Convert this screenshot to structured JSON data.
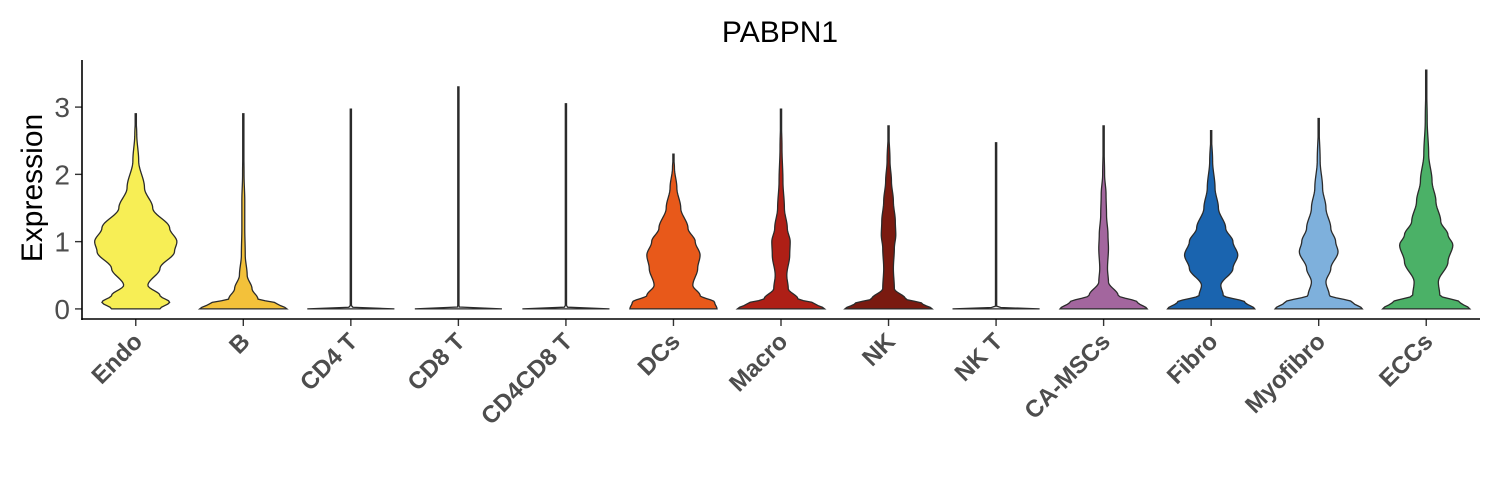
{
  "chart_data": {
    "type": "violin",
    "title": "PABPN1",
    "xlabel": "",
    "ylabel": "Expression",
    "ylim": [
      -0.15,
      3.7
    ],
    "yticks": [
      0,
      1,
      2,
      3
    ],
    "grid": false,
    "legend": "none",
    "categories": [
      "Endo",
      "B",
      "CD4 T",
      "CD8 T",
      "CD4CD8 T",
      "DCs",
      "Macro",
      "NK",
      "NK T",
      "CA-MSCs",
      "Fibro",
      "Myofibro",
      "ECCs"
    ],
    "series": [
      {
        "category": "Endo",
        "color": "#F7EE55",
        "max": 2.9,
        "density": [
          [
            0,
            0.5
          ],
          [
            0.1,
            0.7
          ],
          [
            0.2,
            0.5
          ],
          [
            0.35,
            0.25
          ],
          [
            0.6,
            0.5
          ],
          [
            0.85,
            0.8
          ],
          [
            1.0,
            0.85
          ],
          [
            1.2,
            0.7
          ],
          [
            1.5,
            0.35
          ],
          [
            1.8,
            0.18
          ],
          [
            2.2,
            0.06
          ],
          [
            2.6,
            0.02
          ],
          [
            2.9,
            0
          ]
        ]
      },
      {
        "category": "B",
        "color": "#F3C13A",
        "max": 2.9,
        "density": [
          [
            0,
            0.9
          ],
          [
            0.08,
            0.7
          ],
          [
            0.15,
            0.3
          ],
          [
            0.3,
            0.18
          ],
          [
            0.5,
            0.08
          ],
          [
            0.8,
            0.04
          ],
          [
            1.2,
            0.03
          ],
          [
            1.6,
            0.03
          ],
          [
            2.0,
            0.015
          ],
          [
            2.5,
            0.008
          ],
          [
            2.9,
            0
          ]
        ]
      },
      {
        "category": "CD4 T",
        "color": "#E8E8E8",
        "max": 2.97,
        "density": [
          [
            0,
            0.9
          ],
          [
            0.01,
            0.2
          ],
          [
            0.03,
            0.01
          ],
          [
            0.5,
            0.005
          ],
          [
            2.97,
            0
          ]
        ]
      },
      {
        "category": "CD8 T",
        "color": "#E8E8E8",
        "max": 3.3,
        "density": [
          [
            0,
            0.9
          ],
          [
            0.01,
            0.2
          ],
          [
            0.03,
            0.01
          ],
          [
            0.5,
            0.005
          ],
          [
            3.3,
            0
          ]
        ]
      },
      {
        "category": "CD4CD8 T",
        "color": "#E8E8E8",
        "max": 3.05,
        "density": [
          [
            0,
            0.9
          ],
          [
            0.01,
            0.2
          ],
          [
            0.03,
            0.01
          ],
          [
            0.5,
            0.005
          ],
          [
            3.05,
            0
          ]
        ]
      },
      {
        "category": "DCs",
        "color": "#E8591A",
        "max": 2.3,
        "density": [
          [
            0,
            0.9
          ],
          [
            0.1,
            0.85
          ],
          [
            0.2,
            0.55
          ],
          [
            0.35,
            0.4
          ],
          [
            0.6,
            0.5
          ],
          [
            0.8,
            0.55
          ],
          [
            1.0,
            0.45
          ],
          [
            1.2,
            0.3
          ],
          [
            1.5,
            0.15
          ],
          [
            1.8,
            0.07
          ],
          [
            2.1,
            0.02
          ],
          [
            2.3,
            0
          ]
        ]
      },
      {
        "category": "Macro",
        "color": "#AE1F16",
        "max": 2.97,
        "density": [
          [
            0,
            0.9
          ],
          [
            0.08,
            0.7
          ],
          [
            0.15,
            0.35
          ],
          [
            0.3,
            0.15
          ],
          [
            0.5,
            0.12
          ],
          [
            0.8,
            0.18
          ],
          [
            1.0,
            0.19
          ],
          [
            1.2,
            0.13
          ],
          [
            1.5,
            0.07
          ],
          [
            1.9,
            0.04
          ],
          [
            2.4,
            0.02
          ],
          [
            2.97,
            0
          ]
        ]
      },
      {
        "category": "NK",
        "color": "#7A1A10",
        "max": 2.72,
        "density": [
          [
            0,
            0.9
          ],
          [
            0.08,
            0.7
          ],
          [
            0.15,
            0.35
          ],
          [
            0.3,
            0.12
          ],
          [
            0.6,
            0.1
          ],
          [
            0.9,
            0.12
          ],
          [
            1.1,
            0.15
          ],
          [
            1.3,
            0.14
          ],
          [
            1.6,
            0.1
          ],
          [
            1.9,
            0.06
          ],
          [
            2.2,
            0.03
          ],
          [
            2.72,
            0
          ]
        ]
      },
      {
        "category": "NK T",
        "color": "#E8E8E8",
        "max": 2.47,
        "density": [
          [
            0,
            0.9
          ],
          [
            0.01,
            0.2
          ],
          [
            0.03,
            0.01
          ],
          [
            0.5,
            0.005
          ],
          [
            2.47,
            0
          ]
        ]
      },
      {
        "category": "CA-MSCs",
        "color": "#A3669E",
        "max": 2.72,
        "density": [
          [
            0,
            0.9
          ],
          [
            0.1,
            0.7
          ],
          [
            0.2,
            0.3
          ],
          [
            0.4,
            0.1
          ],
          [
            0.6,
            0.08
          ],
          [
            0.9,
            0.1
          ],
          [
            1.1,
            0.09
          ],
          [
            1.4,
            0.06
          ],
          [
            1.7,
            0.05
          ],
          [
            2.0,
            0.02
          ],
          [
            2.4,
            0.01
          ],
          [
            2.72,
            0
          ]
        ]
      },
      {
        "category": "Fibro",
        "color": "#1A64AF",
        "max": 2.65,
        "density": [
          [
            0,
            0.9
          ],
          [
            0.1,
            0.7
          ],
          [
            0.2,
            0.25
          ],
          [
            0.35,
            0.2
          ],
          [
            0.6,
            0.45
          ],
          [
            0.8,
            0.55
          ],
          [
            1.0,
            0.45
          ],
          [
            1.2,
            0.3
          ],
          [
            1.5,
            0.15
          ],
          [
            1.8,
            0.08
          ],
          [
            2.2,
            0.03
          ],
          [
            2.65,
            0
          ]
        ]
      },
      {
        "category": "Myofibro",
        "color": "#7EB0DC",
        "max": 2.83,
        "density": [
          [
            0,
            0.9
          ],
          [
            0.1,
            0.7
          ],
          [
            0.2,
            0.22
          ],
          [
            0.4,
            0.15
          ],
          [
            0.6,
            0.25
          ],
          [
            0.85,
            0.4
          ],
          [
            1.0,
            0.35
          ],
          [
            1.2,
            0.25
          ],
          [
            1.5,
            0.15
          ],
          [
            1.8,
            0.08
          ],
          [
            2.2,
            0.03
          ],
          [
            2.83,
            0
          ]
        ]
      },
      {
        "category": "ECCs",
        "color": "#4BB167",
        "max": 3.55,
        "density": [
          [
            0,
            0.9
          ],
          [
            0.1,
            0.7
          ],
          [
            0.2,
            0.28
          ],
          [
            0.4,
            0.25
          ],
          [
            0.7,
            0.45
          ],
          [
            0.95,
            0.55
          ],
          [
            1.1,
            0.45
          ],
          [
            1.3,
            0.3
          ],
          [
            1.6,
            0.2
          ],
          [
            1.9,
            0.12
          ],
          [
            2.3,
            0.05
          ],
          [
            2.8,
            0.02
          ],
          [
            3.55,
            0
          ]
        ]
      }
    ]
  }
}
